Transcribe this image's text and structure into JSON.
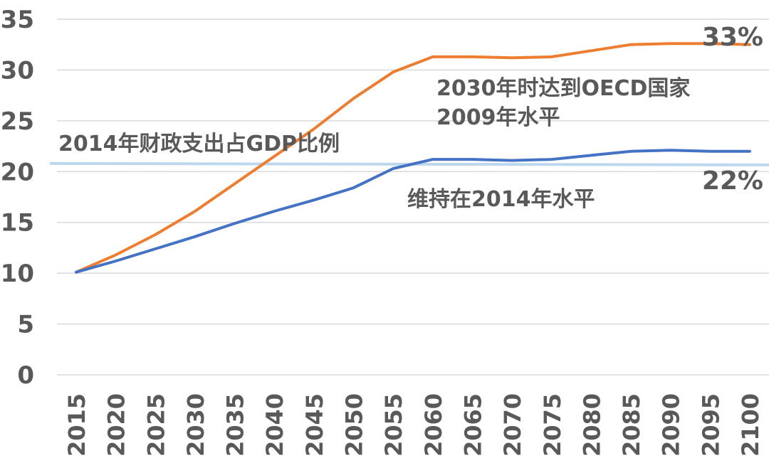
{
  "chart_data": {
    "type": "line",
    "title": "",
    "xlabel": "",
    "ylabel": "",
    "x": [
      "2015",
      "2020",
      "2025",
      "2030",
      "2035",
      "2040",
      "2045",
      "2050",
      "2055",
      "2060",
      "2065",
      "2070",
      "2075",
      "2080",
      "2085",
      "2090",
      "2095",
      "2100"
    ],
    "ylim": [
      0,
      35
    ],
    "yticks": [
      "0",
      "5",
      "10",
      "15",
      "20",
      "25",
      "30",
      "35"
    ],
    "grid": true,
    "series": [
      {
        "color": "#ed7d31",
        "values": [
          10.1,
          11.8,
          13.8,
          16.1,
          18.8,
          21.5,
          24.2,
          27.2,
          29.8,
          31.3,
          31.3,
          31.2,
          31.3,
          31.9,
          32.5,
          32.6,
          32.6,
          32.5
        ]
      },
      {
        "color": "#4472c4",
        "values": [
          10.1,
          11.2,
          12.4,
          13.6,
          14.9,
          16.1,
          17.2,
          18.4,
          20.3,
          21.2,
          21.2,
          21.1,
          21.2,
          21.6,
          22.0,
          22.1,
          22.0,
          22.0
        ]
      }
    ],
    "reference_line": {
      "value": 20.8,
      "color": "#bdd7ee"
    },
    "annotations": {
      "reference": "2014年财政支出占GDP比例",
      "orange_line_1": "2030年时达到OECD国家",
      "orange_line_2": "2009年水平",
      "blue": "维持在2014年水平",
      "orange_end": "33%",
      "blue_end": "22%"
    }
  }
}
